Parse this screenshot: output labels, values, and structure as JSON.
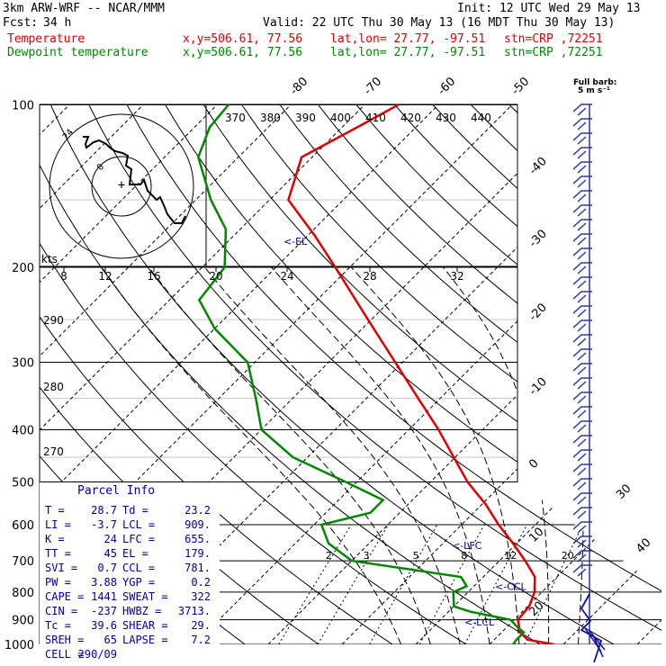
{
  "header": {
    "model": "3km ARW-WRF -- NCAR/MMM",
    "init": "Init: 12 UTC Wed 29 May 13",
    "fcst_label": "Fcst:",
    "fcst_value": "34 h",
    "valid": "Valid: 22 UTC Thu 30 May 13 (16 MDT Thu 30 May 13)",
    "temp_label": "Temperature",
    "dew_label": "Dewpoint temperature",
    "xy": "x,y=506.61, 77.56",
    "latlon": "lat,lon= 27.77, -97.51",
    "stn": "stn=CRP ,72251"
  },
  "barb_key": {
    "line1": "Full barb:",
    "line2": "5 m s⁻¹"
  },
  "parcel_info": {
    "title": "Parcel Info",
    "rows": [
      {
        "k1": "T",
        "v1": "28.7",
        "k2": "Td",
        "v2": "23.2"
      },
      {
        "k1": "LI",
        "v1": "-3.7",
        "k2": "LCL",
        "v2": "909."
      },
      {
        "k1": "K",
        "v1": "24",
        "k2": "LFC",
        "v2": "655."
      },
      {
        "k1": "TT",
        "v1": "45",
        "k2": "EL",
        "v2": "179."
      },
      {
        "k1": "SVI",
        "v1": "0.7",
        "k2": "CCL",
        "v2": "781."
      },
      {
        "k1": "PW",
        "v1": "3.88",
        "k2": "YGP",
        "v2": "0.2"
      },
      {
        "k1": "CAPE",
        "v1": "1441",
        "k2": "SWEAT",
        "v2": "322"
      },
      {
        "k1": "CIN",
        "v1": "-237",
        "k2": "HWBZ",
        "v2": "3713."
      },
      {
        "k1": "Tc",
        "v1": "39.6",
        "k2": "SHEAR",
        "v2": "29."
      },
      {
        "k1": "SREH",
        "v1": "65",
        "k2": "LAPSE",
        "v2": "7.2"
      },
      {
        "k1": "CELL",
        "v1": "290/09",
        "k2": "",
        "v2": ""
      }
    ]
  },
  "colors": {
    "temperature": "#e00000",
    "dewpoint": "#008800",
    "parcel_text": "#0000a0",
    "barbs": "#3030b0",
    "hodograph": "#000000"
  },
  "chart_data": {
    "type": "line",
    "chart_kind": "skew-T log-p",
    "y_axis": {
      "label": "",
      "scale": "log",
      "ticks": [
        100,
        200,
        300,
        400,
        500,
        600,
        700,
        800,
        900,
        1000
      ],
      "range": [
        1000,
        100
      ]
    },
    "isotherm_labels": [
      -80,
      -70,
      -60,
      -50,
      -40,
      -30,
      -20,
      -10,
      0,
      10,
      20,
      30,
      40
    ],
    "theta_labels_top": [
      370,
      380,
      390,
      400,
      410,
      420,
      430,
      440
    ],
    "theta_labels_left": [
      290,
      280,
      270
    ],
    "mixing_ratio_labels": [
      "2",
      "3",
      "5",
      "8",
      "12",
      "20"
    ],
    "hodo_speed_label": "kts",
    "hodo_speed_ticks": [
      8,
      12,
      16,
      20,
      24,
      28,
      32
    ],
    "hodo_ring_labels": [
      "24",
      "0"
    ],
    "levels": [
      {
        "name": "EL",
        "label": "<-EL",
        "p": 179
      },
      {
        "name": "LFC",
        "label": "<-LFC",
        "p": 655
      },
      {
        "name": "CCL",
        "label": "<-CCL",
        "p": 781
      },
      {
        "name": "LCL",
        "label": "<-LCL",
        "p": 909
      }
    ],
    "series": [
      {
        "name": "Temperature",
        "color": "#e00000",
        "points": [
          [
            1000,
            28.7
          ],
          [
            980,
            24.5
          ],
          [
            950,
            22.5
          ],
          [
            900,
            20.5
          ],
          [
            850,
            20.2
          ],
          [
            800,
            19.0
          ],
          [
            750,
            17.0
          ],
          [
            700,
            13.5
          ],
          [
            650,
            9.5
          ],
          [
            600,
            5.0
          ],
          [
            550,
            0.5
          ],
          [
            500,
            -5.0
          ],
          [
            450,
            -10.2
          ],
          [
            400,
            -16.0
          ],
          [
            350,
            -23.0
          ],
          [
            300,
            -31.0
          ],
          [
            250,
            -40.5
          ],
          [
            200,
            -52.0
          ],
          [
            175,
            -59.0
          ],
          [
            150,
            -67.5
          ],
          [
            125,
            -71.5
          ],
          [
            110,
            -68.0
          ],
          [
            100,
            -65.5
          ]
        ]
      },
      {
        "name": "Dewpoint temperature",
        "color": "#008800",
        "points": [
          [
            1000,
            23.2
          ],
          [
            980,
            23.0
          ],
          [
            950,
            23.0
          ],
          [
            930,
            21.5
          ],
          [
            900,
            19.5
          ],
          [
            870,
            13.0
          ],
          [
            850,
            10.0
          ],
          [
            800,
            8.0
          ],
          [
            780,
            9.0
          ],
          [
            750,
            7.0
          ],
          [
            720,
            -3.0
          ],
          [
            700,
            -10.0
          ],
          [
            650,
            -15.5
          ],
          [
            600,
            -19.0
          ],
          [
            570,
            -14.0
          ],
          [
            540,
            -14.0
          ],
          [
            500,
            -21.5
          ],
          [
            450,
            -32.0
          ],
          [
            400,
            -40.0
          ],
          [
            350,
            -45.0
          ],
          [
            300,
            -51.0
          ],
          [
            260,
            -60.0
          ],
          [
            230,
            -66.0
          ],
          [
            200,
            -67.0
          ],
          [
            170,
            -72.0
          ],
          [
            150,
            -78.0
          ],
          [
            125,
            -85.5
          ],
          [
            110,
            -88.0
          ],
          [
            100,
            -88.5
          ]
        ]
      }
    ]
  }
}
